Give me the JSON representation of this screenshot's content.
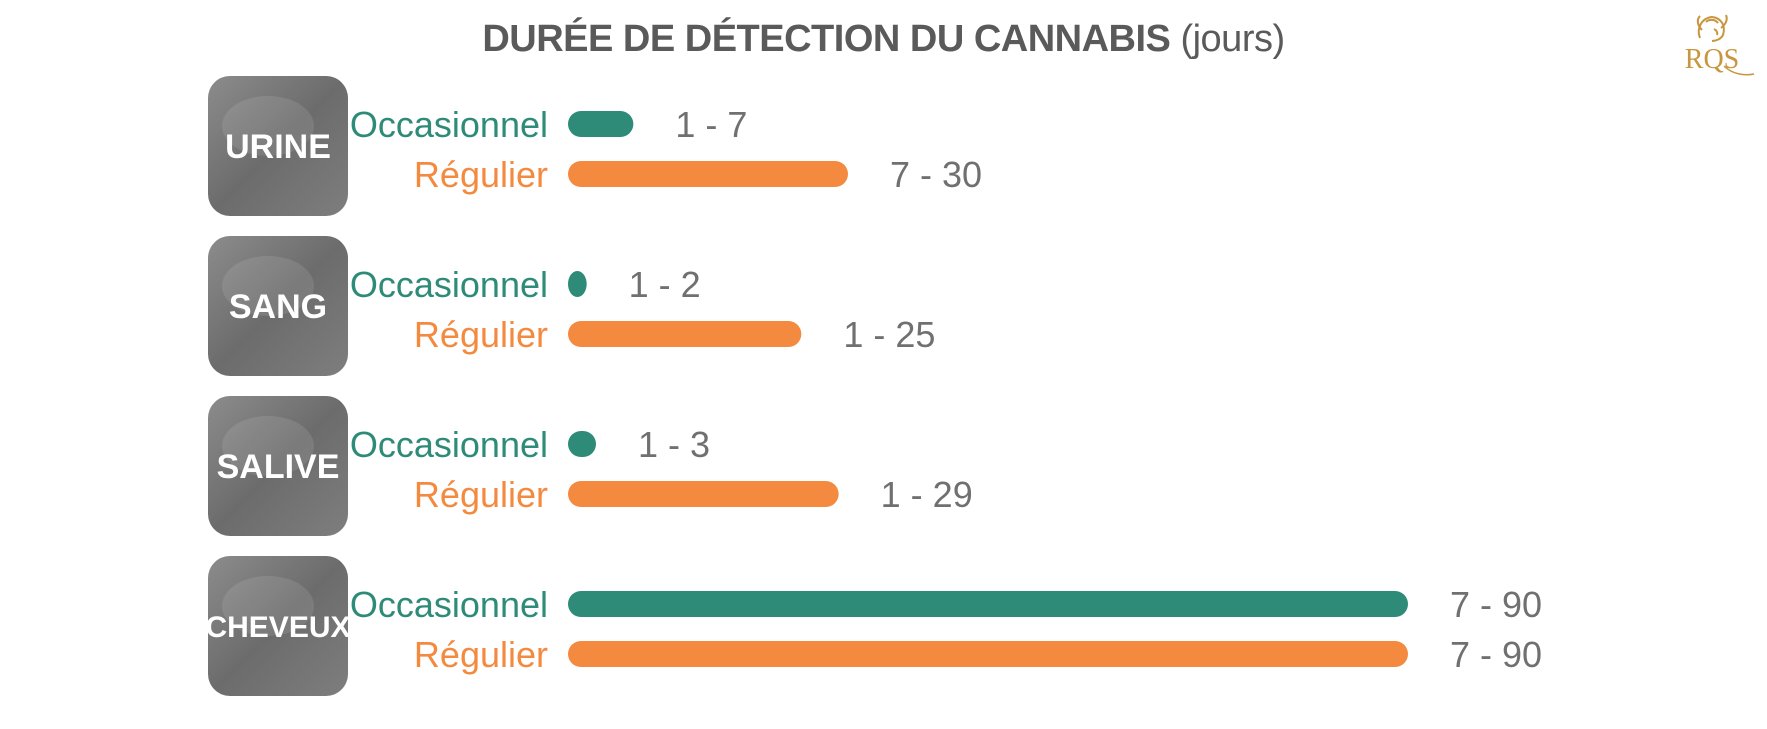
{
  "title": {
    "main": "DURÉE DE DÉTECTION DU CANNABIS",
    "unit": "(jours)"
  },
  "logo": {
    "text": "RQS",
    "color": "#c8963e"
  },
  "colors": {
    "occasionnel": "#2e8b78",
    "regulier": "#f48a40",
    "value_text": "#707070",
    "category_tile": "#7a7a7a"
  },
  "chart_data": {
    "type": "bar",
    "orientation": "horizontal",
    "title": "DURÉE DE DÉTECTION DU CANNABIS (jours)",
    "categories": [
      "URINE",
      "SANG",
      "SALIVE",
      "CHEVEUX"
    ],
    "category_icons": [
      "urine-sample-icon",
      "blood-tube-icon",
      "saliva-swab-icon",
      "hair-eye-icon"
    ],
    "series": [
      {
        "name": "Occasionnel",
        "color": "#2e8b78",
        "ranges": [
          [
            1,
            7
          ],
          [
            1,
            2
          ],
          [
            1,
            3
          ],
          [
            7,
            90
          ]
        ],
        "labels": [
          "1 - 7",
          "1 - 2",
          "1 - 3",
          "7 - 90"
        ]
      },
      {
        "name": "Régulier",
        "color": "#f48a40",
        "ranges": [
          [
            7,
            30
          ],
          [
            1,
            25
          ],
          [
            1,
            29
          ],
          [
            7,
            90
          ]
        ],
        "labels": [
          "7 - 30",
          "1 - 25",
          "1 - 29",
          "7 - 90"
        ]
      }
    ],
    "value_axis": {
      "max": 90,
      "visible": false
    },
    "grid": false,
    "legend": "inline"
  }
}
